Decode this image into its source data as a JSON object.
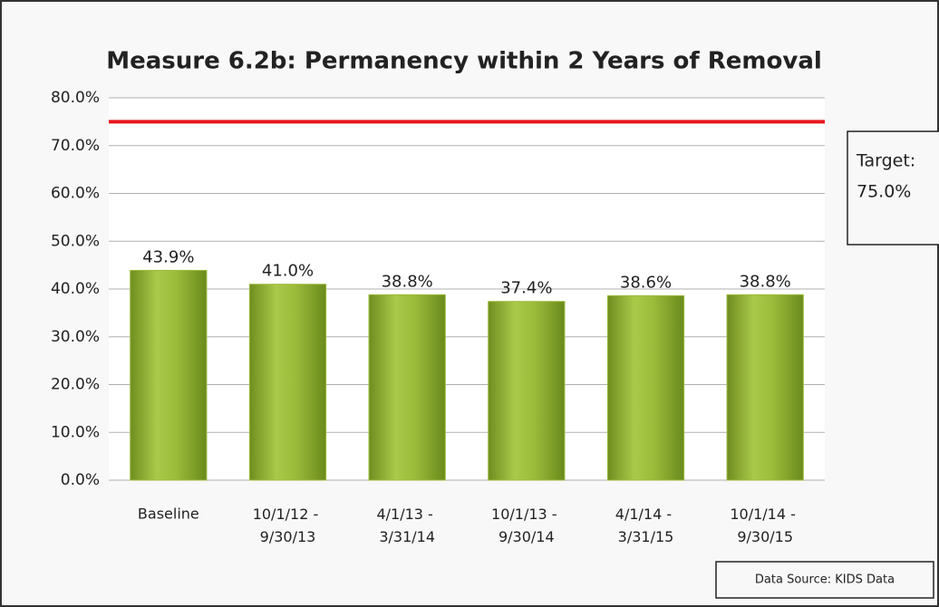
{
  "chart_data": {
    "type": "bar",
    "title": "Measure 6.2b: Permanency within 2 Years of Removal",
    "categories": [
      "Baseline",
      "10/1/12 - 9/30/13",
      "4/1/13 - 3/31/14",
      "10/1/13 - 9/30/14",
      "4/1/14 - 3/31/15",
      "10/1/14 - 9/30/15"
    ],
    "values": [
      43.9,
      41.0,
      38.8,
      37.4,
      38.6,
      38.8
    ],
    "value_labels": [
      "43.9%",
      "41.0%",
      "38.8%",
      "37.4%",
      "38.6%",
      "38.8%"
    ],
    "color": "#9bbb3b",
    "ylim": [
      0,
      80
    ],
    "yticks": [
      {
        "value": 0,
        "label": "0.0%"
      },
      {
        "value": 10,
        "label": "10.0%"
      },
      {
        "value": 20,
        "label": "20.0%"
      },
      {
        "value": 30,
        "label": "30.0%"
      },
      {
        "value": 40,
        "label": "40.0%"
      },
      {
        "value": 50,
        "label": "50.0%"
      },
      {
        "value": 60,
        "label": "60.0%"
      },
      {
        "value": 70,
        "label": "70.0%"
      },
      {
        "value": 80,
        "label": "80.0%"
      }
    ],
    "grid": true,
    "target_title": "Target:",
    "target": {
      "value": 75,
      "label": "75.0%",
      "color": "#e8161c"
    },
    "source": "Data Source: KIDS Data"
  }
}
